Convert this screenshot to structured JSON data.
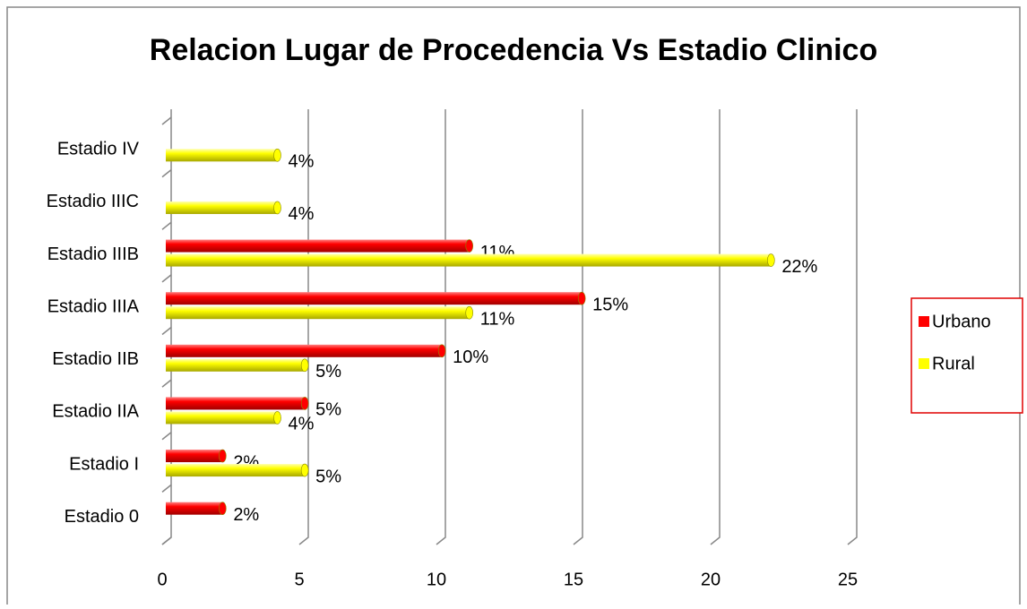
{
  "chart_data": {
    "type": "hbar",
    "title": "Relacion Lugar de Procedencia Vs Estadio Clinico",
    "categories": [
      "Estadio 0",
      "Estadio I",
      "Estadio IIA",
      "Estadio IIB",
      "Estadio IIIA",
      "Estadio IIIB",
      "Estadio IIIC",
      "Estadio IV"
    ],
    "series": [
      {
        "name": "Urbano",
        "color": "#ff0000",
        "values": [
          2.2,
          2.2,
          5.2,
          10.2,
          15.3,
          11.2,
          null,
          null
        ],
        "value_labels": [
          "2%",
          "2%",
          "5%",
          "10%",
          "15%",
          "11%",
          null,
          null
        ]
      },
      {
        "name": "Rural",
        "color": "#ffff00",
        "values": [
          null,
          5.2,
          4.2,
          5.2,
          11.2,
          22.2,
          4.2,
          4.2
        ],
        "value_labels": [
          null,
          "5%",
          "4%",
          "5%",
          "11%",
          "22%",
          "4%",
          "4%"
        ]
      }
    ],
    "xlim": [
      0,
      25
    ],
    "xticks": [
      0,
      5,
      10,
      15,
      20,
      25
    ],
    "grid": true,
    "legend": "right"
  }
}
